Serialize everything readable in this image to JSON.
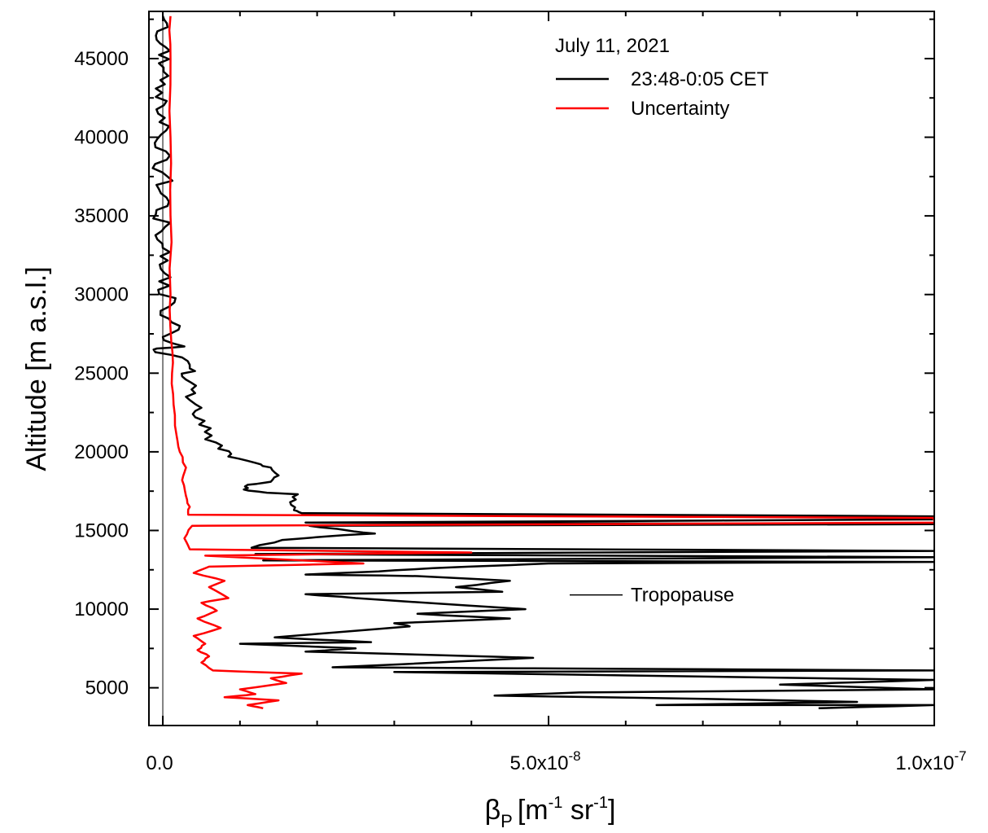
{
  "chart_data": {
    "type": "line",
    "xlabel": "βP [m-1 sr-1]",
    "xlabel_parts": {
      "beta": "β",
      "beta_sub": "P",
      "open": "[m",
      "m_sup": "-1",
      "sr": " sr",
      "sr_sup": "-1",
      "close": "]"
    },
    "ylabel": "Altitude [m a.s.l.]",
    "xlim": [
      -1.8e-09,
      1e-07
    ],
    "ylim": [
      2600,
      48000
    ],
    "x_ticks": [
      {
        "value": 0,
        "mantissa": "0.0",
        "exponent": ""
      },
      {
        "value": 5e-08,
        "mantissa": "5.0x10",
        "exponent": "-8"
      },
      {
        "value": 1e-07,
        "mantissa": "1.0x10",
        "exponent": "-7"
      }
    ],
    "y_ticks": [
      "5000",
      "10000",
      "15000",
      "20000",
      "25000",
      "30000",
      "35000",
      "40000",
      "45000"
    ],
    "legend": {
      "title": "July 11, 2021",
      "position": "top-right",
      "entries": [
        "23:48-0:05 CET",
        "Uncertainty"
      ]
    },
    "annotation": {
      "label": "Tropopause",
      "y": 10900
    },
    "colors": {
      "signal": "#000000",
      "uncertainty": "#ff0000",
      "zero_line": "#808080"
    },
    "series": [
      {
        "name": "23:48-0:05 CET",
        "color": "#000000",
        "points": [
          [
            0.0,
            47700
          ],
          [
            6e-10,
            47000
          ],
          [
            -8e-10,
            46200
          ],
          [
            9e-10,
            45500
          ],
          [
            -5e-10,
            44700
          ],
          [
            7e-10,
            43900
          ],
          [
            -9e-10,
            43100
          ],
          [
            5e-10,
            42300
          ],
          [
            -6e-10,
            41500
          ],
          [
            8e-10,
            40700
          ],
          [
            -7e-10,
            39900
          ],
          [
            4e-10,
            39100
          ],
          [
            -1e-09,
            38300
          ],
          [
            6e-10,
            37500
          ],
          [
            -5e-10,
            36700
          ],
          [
            8e-10,
            35900
          ],
          [
            -9e-10,
            35100
          ],
          [
            3e-10,
            34300
          ],
          [
            -7e-10,
            33500
          ],
          [
            9e-10,
            32700
          ],
          [
            -4e-10,
            31900
          ],
          [
            1e-09,
            31100
          ],
          [
            -6e-10,
            30300
          ],
          [
            1.5e-09,
            29500
          ],
          [
            -3e-10,
            28700
          ],
          [
            2.2e-09,
            28000
          ],
          [
            0.0,
            27300
          ],
          [
            2.8e-09,
            26700
          ],
          [
            -1.2e-09,
            26500
          ],
          [
            2.5e-09,
            26000
          ],
          [
            3.5e-09,
            25300
          ],
          [
            2.5e-09,
            24800
          ],
          [
            4.3e-09,
            24200
          ],
          [
            3e-09,
            23500
          ],
          [
            5e-09,
            22800
          ],
          [
            4.2e-09,
            22200
          ],
          [
            6.2e-09,
            21500
          ],
          [
            5.5e-09,
            20800
          ],
          [
            7.2e-09,
            20200
          ],
          [
            8.5e-09,
            19700
          ],
          [
            1.2e-08,
            19300
          ],
          [
            1.4e-08,
            19000
          ],
          [
            1.5e-08,
            18500
          ],
          [
            1.4e-08,
            18100
          ],
          [
            1.1e-08,
            17900
          ],
          [
            1.05e-08,
            17600
          ],
          [
            1.35e-08,
            17400
          ],
          [
            1.75e-08,
            17300
          ],
          [
            1.65e-08,
            16800
          ],
          [
            1.7e-08,
            16300
          ],
          [
            1.8e-08,
            16100
          ],
          [
            1e-07,
            15900
          ],
          [
            1e-07,
            15700
          ],
          [
            1.85e-08,
            15500
          ],
          [
            1e-07,
            15400
          ],
          [
            1.9e-08,
            15300
          ],
          [
            2.4e-08,
            15000
          ],
          [
            2.75e-08,
            14800
          ],
          [
            2.2e-08,
            14650
          ],
          [
            1.55e-08,
            14400
          ],
          [
            1.15e-08,
            13900
          ],
          [
            1e-07,
            13700
          ],
          [
            1.2e-08,
            13500
          ],
          [
            1e-07,
            13300
          ],
          [
            1.3e-08,
            13100
          ],
          [
            1e-07,
            13000
          ],
          [
            5e-08,
            12900
          ],
          [
            3.5e-08,
            12600
          ],
          [
            2.8e-08,
            12400
          ],
          [
            1.85e-08,
            12200
          ],
          [
            3.3e-08,
            12100
          ],
          [
            4.5e-08,
            11800
          ],
          [
            3.8e-08,
            11400
          ],
          [
            4.4e-08,
            11100
          ],
          [
            1.85e-08,
            10950
          ],
          [
            2.5e-08,
            10700
          ],
          [
            4.7e-08,
            10000
          ],
          [
            3.3e-08,
            9700
          ],
          [
            4.5e-08,
            9400
          ],
          [
            3e-08,
            9100
          ],
          [
            3.2e-08,
            8900
          ],
          [
            1.45e-08,
            8200
          ],
          [
            2.7e-08,
            7900
          ],
          [
            1e-08,
            7800
          ],
          [
            2.5e-08,
            7500
          ],
          [
            1.85e-08,
            7300
          ],
          [
            3.4e-08,
            7100
          ],
          [
            4.8e-08,
            6900
          ],
          [
            2.2e-08,
            6300
          ],
          [
            1e-07,
            6100
          ],
          [
            3e-08,
            6000
          ],
          [
            1e-07,
            5500
          ],
          [
            8e-08,
            5200
          ],
          [
            1e-07,
            4900
          ],
          [
            5.4e-08,
            4700
          ],
          [
            4.3e-08,
            4500
          ],
          [
            7e-08,
            4300
          ],
          [
            9e-08,
            4100
          ],
          [
            6.4e-08,
            3900
          ],
          [
            1e-07,
            3900
          ],
          [
            8.5e-08,
            3700
          ]
        ]
      },
      {
        "name": "Uncertainty",
        "color": "#ff0000",
        "points": [
          [
            1e-09,
            47700
          ],
          [
            1e-09,
            45000
          ],
          [
            1e-09,
            40000
          ],
          [
            1e-09,
            35000
          ],
          [
            1e-09,
            30000
          ],
          [
            1.1e-09,
            27000
          ],
          [
            1.2e-09,
            25000
          ],
          [
            1.4e-09,
            23000
          ],
          [
            1.8e-09,
            21000
          ],
          [
            2.2e-09,
            20000
          ],
          [
            3e-09,
            19000
          ],
          [
            2.5e-09,
            18200
          ],
          [
            3e-09,
            17200
          ],
          [
            3.5e-09,
            16500
          ],
          [
            3.3e-09,
            16000
          ],
          [
            1e-07,
            15800
          ],
          [
            1e-07,
            15500
          ],
          [
            3.8e-09,
            15300
          ],
          [
            2.8e-09,
            14500
          ],
          [
            3.5e-09,
            13800
          ],
          [
            4e-08,
            13600
          ],
          [
            5.5e-09,
            13400
          ],
          [
            2.6e-08,
            12900
          ],
          [
            6e-09,
            12700
          ],
          [
            4e-09,
            12300
          ],
          [
            8e-09,
            11800
          ],
          [
            6e-09,
            11400
          ],
          [
            8.5e-09,
            10700
          ],
          [
            5e-09,
            10400
          ],
          [
            7e-09,
            9900
          ],
          [
            4.5e-09,
            9400
          ],
          [
            7.5e-09,
            8800
          ],
          [
            4e-09,
            8300
          ],
          [
            5.5e-09,
            7800
          ],
          [
            4.5e-09,
            7400
          ],
          [
            6e-09,
            7000
          ],
          [
            5e-09,
            6600
          ],
          [
            6.5e-09,
            6100
          ],
          [
            1.8e-08,
            5900
          ],
          [
            1.4e-08,
            5600
          ],
          [
            1.6e-08,
            5300
          ],
          [
            1e-08,
            4900
          ],
          [
            1.2e-08,
            4600
          ],
          [
            8e-09,
            4400
          ],
          [
            1.5e-08,
            4200
          ],
          [
            1.1e-08,
            3900
          ],
          [
            1.3e-08,
            3700
          ]
        ]
      }
    ]
  }
}
